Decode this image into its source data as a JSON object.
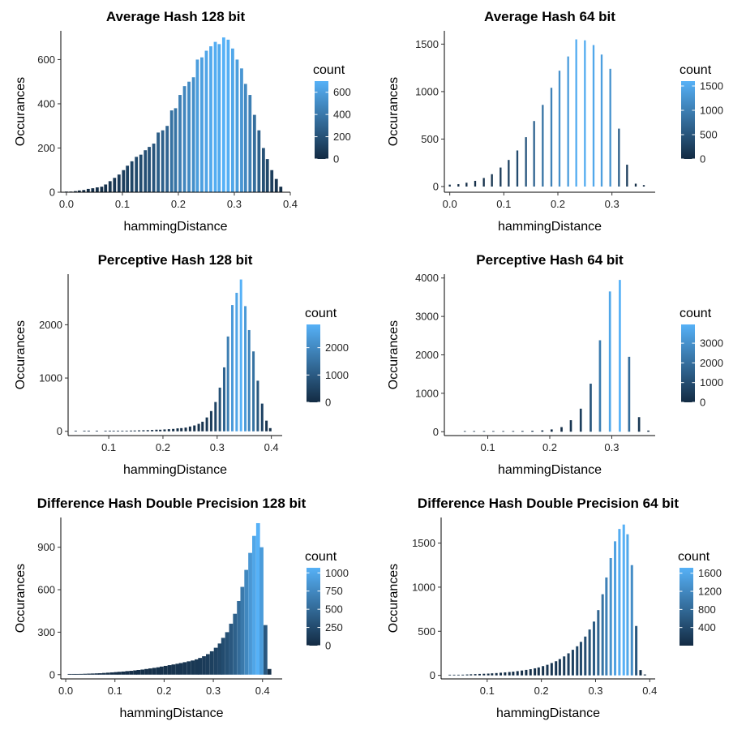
{
  "colors": {
    "low": "#132B43",
    "high": "#56B1F7",
    "axis": "#000000",
    "background": "#ffffff"
  },
  "chart_data": [
    {
      "type": "bar",
      "title": "Average Hash 128 bit",
      "xlabel": "hammingDistance",
      "ylabel": "Occurances",
      "xlim": [
        -0.01,
        0.4
      ],
      "ylim": [
        0,
        730
      ],
      "xticks": [
        0.0,
        0.1,
        0.2,
        0.3,
        0.4
      ],
      "xtick_labels": [
        "0.0",
        "0.1",
        "0.2",
        "0.3",
        "0.4"
      ],
      "yticks": [
        0,
        200,
        400,
        600
      ],
      "ytick_labels": [
        "0",
        "200",
        "400",
        "600"
      ],
      "legend": {
        "title": "count",
        "min": 0,
        "max": 700,
        "ticks": [
          0,
          200,
          400,
          600
        ],
        "tick_labels": [
          "0",
          "200",
          "400",
          "600"
        ],
        "position": "right"
      },
      "grid": false,
      "x": [
        0.0,
        0.008,
        0.016,
        0.023,
        0.031,
        0.039,
        0.047,
        0.055,
        0.063,
        0.07,
        0.078,
        0.086,
        0.094,
        0.102,
        0.109,
        0.117,
        0.125,
        0.133,
        0.141,
        0.148,
        0.156,
        0.164,
        0.172,
        0.18,
        0.188,
        0.195,
        0.203,
        0.211,
        0.219,
        0.227,
        0.234,
        0.242,
        0.25,
        0.258,
        0.266,
        0.273,
        0.281,
        0.289,
        0.297,
        0.305,
        0.313,
        0.32,
        0.328,
        0.336,
        0.344,
        0.352,
        0.359,
        0.367,
        0.375,
        0.383
      ],
      "values": [
        2,
        3,
        5,
        8,
        10,
        15,
        18,
        22,
        25,
        35,
        50,
        65,
        80,
        100,
        120,
        140,
        160,
        170,
        190,
        205,
        220,
        270,
        280,
        300,
        370,
        380,
        440,
        480,
        500,
        520,
        600,
        610,
        640,
        660,
        680,
        670,
        700,
        690,
        650,
        600,
        560,
        490,
        440,
        350,
        280,
        200,
        150,
        100,
        60,
        25
      ],
      "bar_width": 0.0055
    },
    {
      "type": "bar",
      "title": "Average Hash 64 bit",
      "xlabel": "hammingDistance",
      "ylabel": "Occurances",
      "xlim": [
        -0.01,
        0.38
      ],
      "ylim": [
        -60,
        1640
      ],
      "xticks": [
        0.0,
        0.1,
        0.2,
        0.3
      ],
      "xtick_labels": [
        "0.0",
        "0.1",
        "0.2",
        "0.3"
      ],
      "yticks": [
        0,
        500,
        1000,
        1500
      ],
      "ytick_labels": [
        "0",
        "500",
        "1000",
        "1500"
      ],
      "legend": {
        "title": "count",
        "min": 0,
        "max": 1600,
        "ticks": [
          0,
          500,
          1000,
          1500
        ],
        "tick_labels": [
          "0",
          "500",
          "1000",
          "1500"
        ],
        "position": "right"
      },
      "grid": false,
      "x": [
        0.0,
        0.016,
        0.031,
        0.047,
        0.063,
        0.078,
        0.094,
        0.109,
        0.125,
        0.141,
        0.156,
        0.172,
        0.188,
        0.203,
        0.219,
        0.234,
        0.25,
        0.266,
        0.281,
        0.297,
        0.313,
        0.328,
        0.344,
        0.359
      ],
      "values": [
        20,
        25,
        40,
        60,
        90,
        130,
        200,
        280,
        380,
        520,
        690,
        860,
        1040,
        1220,
        1370,
        1550,
        1540,
        1490,
        1390,
        1240,
        610,
        230,
        30,
        15
      ],
      "bar_width": 0.0035
    },
    {
      "type": "bar",
      "title": "Perceptive Hash 128 bit",
      "xlabel": "hammingDistance",
      "ylabel": "Occurances",
      "xlim": [
        0.025,
        0.42
      ],
      "ylim": [
        -80,
        2950
      ],
      "xticks": [
        0.1,
        0.2,
        0.3,
        0.4
      ],
      "xtick_labels": [
        "0.1",
        "0.2",
        "0.3",
        "0.4"
      ],
      "yticks": [
        0,
        1000,
        2000
      ],
      "ytick_labels": [
        "0",
        "1000",
        "2000"
      ],
      "legend": {
        "title": "count",
        "min": 0,
        "max": 2850,
        "ticks": [
          0,
          1000,
          2000
        ],
        "tick_labels": [
          "0",
          "1000",
          "2000"
        ],
        "position": "right"
      },
      "grid": false,
      "x": [
        0.039,
        0.055,
        0.063,
        0.078,
        0.094,
        0.102,
        0.109,
        0.117,
        0.125,
        0.133,
        0.141,
        0.148,
        0.156,
        0.164,
        0.172,
        0.18,
        0.188,
        0.195,
        0.203,
        0.211,
        0.219,
        0.227,
        0.234,
        0.242,
        0.25,
        0.258,
        0.266,
        0.273,
        0.281,
        0.289,
        0.297,
        0.305,
        0.313,
        0.32,
        0.328,
        0.336,
        0.344,
        0.352,
        0.359,
        0.367,
        0.375,
        0.383,
        0.391,
        0.398
      ],
      "values": [
        5,
        5,
        5,
        5,
        5,
        8,
        10,
        10,
        12,
        12,
        14,
        15,
        18,
        20,
        22,
        25,
        30,
        30,
        35,
        40,
        45,
        55,
        60,
        70,
        90,
        110,
        140,
        180,
        260,
        380,
        550,
        820,
        1200,
        1780,
        2370,
        2600,
        2850,
        2350,
        1900,
        1500,
        950,
        520,
        200,
        60
      ],
      "bar_width": 0.0045
    },
    {
      "type": "bar",
      "title": "Perceptive Hash 64 bit",
      "xlabel": "hammingDistance",
      "ylabel": "Occurances",
      "xlim": [
        0.03,
        0.37
      ],
      "ylim": [
        -100,
        4100
      ],
      "xticks": [
        0.1,
        0.2,
        0.3
      ],
      "xtick_labels": [
        "0.1",
        "0.2",
        "0.3"
      ],
      "yticks": [
        0,
        1000,
        2000,
        3000,
        4000
      ],
      "ytick_labels": [
        "0",
        "1000",
        "2000",
        "3000",
        "4000"
      ],
      "legend": {
        "title": "count",
        "min": 0,
        "max": 3950,
        "ticks": [
          0,
          1000,
          2000,
          3000
        ],
        "tick_labels": [
          "0",
          "1000",
          "2000",
          "3000"
        ],
        "position": "right"
      },
      "grid": false,
      "x": [
        0.063,
        0.078,
        0.094,
        0.109,
        0.125,
        0.141,
        0.156,
        0.172,
        0.188,
        0.203,
        0.219,
        0.234,
        0.25,
        0.266,
        0.281,
        0.297,
        0.313,
        0.328,
        0.344,
        0.359
      ],
      "values": [
        5,
        8,
        10,
        12,
        15,
        18,
        20,
        25,
        35,
        60,
        120,
        300,
        600,
        1250,
        2380,
        3650,
        3950,
        1950,
        380,
        30
      ],
      "bar_width": 0.0035
    },
    {
      "type": "bar",
      "title": "Difference Hash Double Precision 128 bit",
      "xlabel": "hammingDistance",
      "ylabel": "Occurances",
      "xlim": [
        -0.01,
        0.44
      ],
      "ylim": [
        -30,
        1110
      ],
      "xticks": [
        0.0,
        0.1,
        0.2,
        0.3,
        0.4
      ],
      "xtick_labels": [
        "0.0",
        "0.1",
        "0.2",
        "0.3",
        "0.4"
      ],
      "yticks": [
        0,
        300,
        600,
        900
      ],
      "ytick_labels": [
        "0",
        "300",
        "600",
        "900"
      ],
      "legend": {
        "title": "count",
        "min": 0,
        "max": 1070,
        "ticks": [
          0,
          250,
          500,
          750,
          1000
        ],
        "tick_labels": [
          "0",
          "250",
          "500",
          "750",
          "1000"
        ],
        "position": "right"
      },
      "grid": false,
      "x": [
        0.008,
        0.016,
        0.023,
        0.031,
        0.039,
        0.047,
        0.055,
        0.063,
        0.07,
        0.078,
        0.086,
        0.094,
        0.102,
        0.109,
        0.117,
        0.125,
        0.133,
        0.141,
        0.148,
        0.156,
        0.164,
        0.172,
        0.18,
        0.188,
        0.195,
        0.203,
        0.211,
        0.219,
        0.227,
        0.234,
        0.242,
        0.25,
        0.258,
        0.266,
        0.273,
        0.281,
        0.289,
        0.297,
        0.305,
        0.313,
        0.32,
        0.328,
        0.336,
        0.344,
        0.352,
        0.359,
        0.367,
        0.375,
        0.383,
        0.391,
        0.398,
        0.406,
        0.414
      ],
      "values": [
        2,
        3,
        4,
        5,
        6,
        7,
        8,
        9,
        10,
        12,
        14,
        16,
        18,
        20,
        22,
        25,
        27,
        30,
        33,
        36,
        40,
        44,
        48,
        52,
        57,
        62,
        67,
        72,
        77,
        82,
        88,
        94,
        100,
        108,
        118,
        130,
        145,
        165,
        190,
        220,
        260,
        300,
        360,
        430,
        520,
        620,
        740,
        860,
        980,
        1070,
        900,
        350,
        40
      ],
      "bar_width": 0.0079
    },
    {
      "type": "bar",
      "title": "Difference Hash Double Precision 64 bit",
      "xlabel": "hammingDistance",
      "ylabel": "Occurances",
      "xlim": [
        0.015,
        0.41
      ],
      "ylim": [
        -40,
        1790
      ],
      "xticks": [
        0.1,
        0.2,
        0.3,
        0.4
      ],
      "xtick_labels": [
        "0.1",
        "0.2",
        "0.3",
        "0.4"
      ],
      "yticks": [
        0,
        500,
        1000,
        1500
      ],
      "ytick_labels": [
        "0",
        "500",
        "1000",
        "1500"
      ],
      "legend": {
        "title": "count",
        "min": 0,
        "max": 1720,
        "ticks": [
          400,
          800,
          1200,
          1600
        ],
        "tick_labels": [
          "400",
          "800",
          "1200",
          "1600"
        ],
        "position": "right"
      },
      "grid": false,
      "x": [
        0.031,
        0.039,
        0.047,
        0.055,
        0.063,
        0.07,
        0.078,
        0.086,
        0.094,
        0.102,
        0.109,
        0.117,
        0.125,
        0.133,
        0.141,
        0.148,
        0.156,
        0.164,
        0.172,
        0.18,
        0.188,
        0.195,
        0.203,
        0.211,
        0.219,
        0.227,
        0.234,
        0.242,
        0.25,
        0.258,
        0.266,
        0.273,
        0.281,
        0.289,
        0.297,
        0.305,
        0.313,
        0.32,
        0.328,
        0.336,
        0.344,
        0.352,
        0.359,
        0.367,
        0.375,
        0.383,
        0.391
      ],
      "values": [
        5,
        6,
        7,
        8,
        10,
        12,
        14,
        16,
        18,
        20,
        23,
        26,
        30,
        34,
        38,
        42,
        48,
        55,
        62,
        70,
        80,
        90,
        105,
        120,
        140,
        160,
        185,
        215,
        250,
        290,
        330,
        380,
        440,
        520,
        610,
        740,
        920,
        1110,
        1330,
        1520,
        1660,
        1710,
        1600,
        1250,
        560,
        60,
        10
      ],
      "bar_width": 0.0045
    }
  ]
}
